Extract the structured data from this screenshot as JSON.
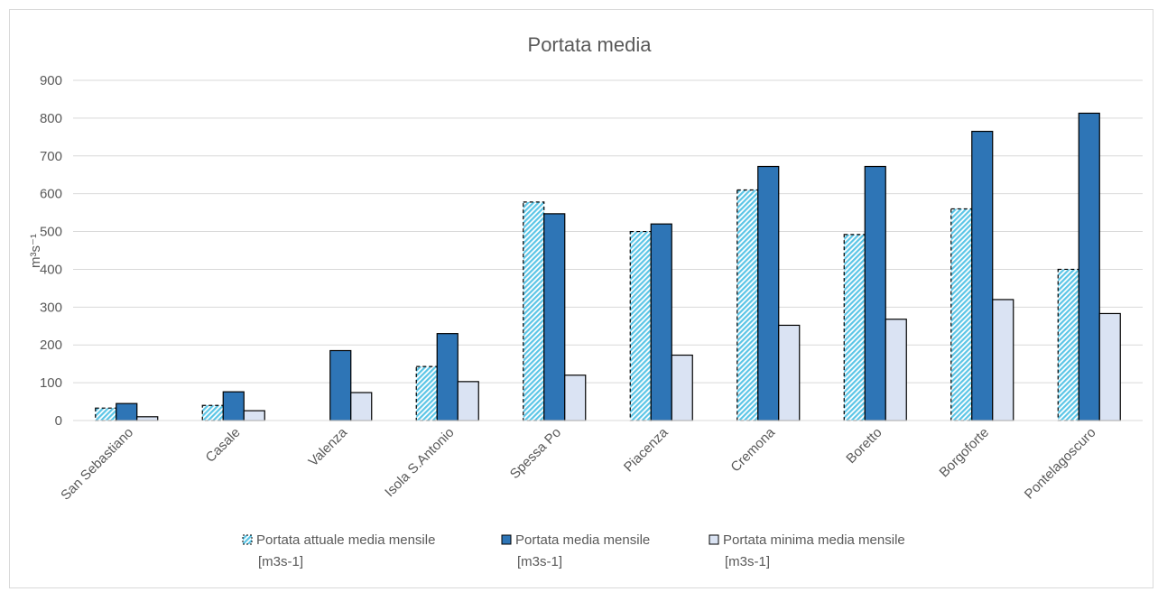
{
  "chart_data": {
    "type": "bar",
    "title": "Portata media",
    "xlabel": "",
    "ylabel": "m³s⁻¹",
    "ylim": [
      0,
      900
    ],
    "yticks": [
      0,
      100,
      200,
      300,
      400,
      500,
      600,
      700,
      800,
      900
    ],
    "grid": true,
    "legend_position": "bottom",
    "categories": [
      "San Sebastiano",
      "Casale",
      "Valenza",
      "Isola S.Antonio",
      "Spessa Po",
      "Piacenza",
      "Cremona",
      "Boretto",
      "Borgoforte",
      "Pontelagoscuro"
    ],
    "series": [
      {
        "name": "Portata attuale media mensile [m3s-1]",
        "legend_lines": [
          "Portata attuale media mensile",
          "[m3s-1]"
        ],
        "color": "#5bc5e6",
        "style": "hatched-dashed",
        "values": [
          33,
          40,
          null,
          143,
          578,
          500,
          610,
          492,
          560,
          400
        ]
      },
      {
        "name": "Portata media mensile [m3s-1]",
        "legend_lines": [
          "Portata media mensile",
          "[m3s-1]"
        ],
        "color": "#2e75b6",
        "style": "solid",
        "values": [
          45,
          76,
          185,
          230,
          547,
          520,
          672,
          672,
          765,
          813
        ]
      },
      {
        "name": "Portata minima media mensile [m3s-1]",
        "legend_lines": [
          "Portata minima media mensile",
          "[m3s-1]"
        ],
        "color": "#dae3f3",
        "style": "solid",
        "values": [
          10,
          26,
          74,
          103,
          120,
          173,
          252,
          268,
          320,
          283
        ]
      }
    ]
  }
}
